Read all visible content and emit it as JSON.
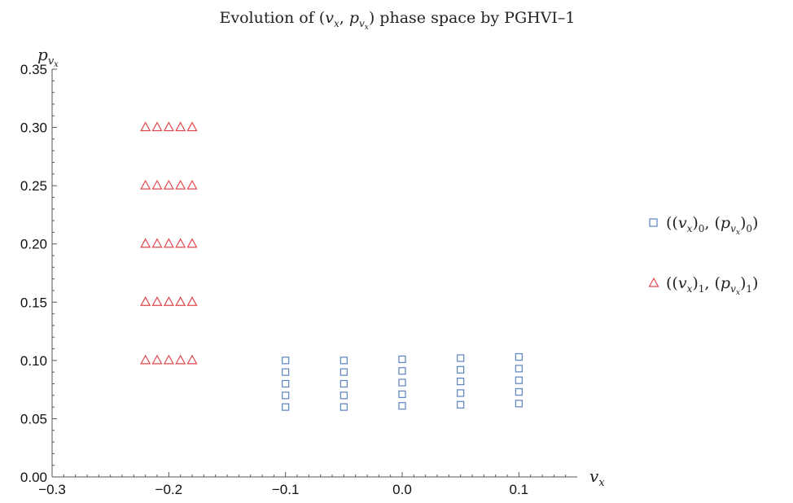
{
  "chart_data": {
    "type": "scatter",
    "title": "Evolution of (vₓ, p_vₓ) phase space by PGHVI–1",
    "title_parts": {
      "prefix": "Evolution of ",
      "open_paren": "(",
      "v": "v",
      "x_sub": "x",
      "comma": ", ",
      "p": "p",
      "p_sub_v": "v",
      "p_sub_x": "x",
      "close_paren": ")",
      "suffix": " phase space by PGHVI–1"
    },
    "xlabel": "vₓ",
    "ylabel": "p_vₓ",
    "xlim": [
      -0.3,
      0.15
    ],
    "ylim": [
      0.0,
      0.35
    ],
    "x_ticks": [
      {
        "value": -0.3,
        "label": "−0.3"
      },
      {
        "value": -0.2,
        "label": "−0.2"
      },
      {
        "value": -0.1,
        "label": "−0.1"
      },
      {
        "value": 0.0,
        "label": "0.0"
      },
      {
        "value": 0.1,
        "label": "0.1"
      }
    ],
    "y_ticks": [
      {
        "value": 0.0,
        "label": "0.00"
      },
      {
        "value": 0.05,
        "label": "0.05"
      },
      {
        "value": 0.1,
        "label": "0.10"
      },
      {
        "value": 0.15,
        "label": "0.15"
      },
      {
        "value": 0.2,
        "label": "0.20"
      },
      {
        "value": 0.25,
        "label": "0.25"
      },
      {
        "value": 0.3,
        "label": "0.30"
      },
      {
        "value": 0.35,
        "label": "0.35"
      }
    ],
    "grid": false,
    "legend_position": "right",
    "series": [
      {
        "name": "((vₓ)₀, (p_vₓ)₀)",
        "marker": "square",
        "color": "#5b83c0",
        "points": [
          [
            -0.1,
            0.06
          ],
          [
            -0.1,
            0.07
          ],
          [
            -0.1,
            0.08
          ],
          [
            -0.1,
            0.09
          ],
          [
            -0.1,
            0.1
          ],
          [
            -0.05,
            0.06
          ],
          [
            -0.05,
            0.07
          ],
          [
            -0.05,
            0.08
          ],
          [
            -0.05,
            0.09
          ],
          [
            -0.05,
            0.1
          ],
          [
            0.0,
            0.061
          ],
          [
            0.0,
            0.071
          ],
          [
            0.0,
            0.081
          ],
          [
            0.0,
            0.091
          ],
          [
            0.0,
            0.101
          ],
          [
            0.05,
            0.062
          ],
          [
            0.05,
            0.072
          ],
          [
            0.05,
            0.082
          ],
          [
            0.05,
            0.092
          ],
          [
            0.05,
            0.102
          ],
          [
            0.1,
            0.063
          ],
          [
            0.1,
            0.073
          ],
          [
            0.1,
            0.083
          ],
          [
            0.1,
            0.093
          ],
          [
            0.1,
            0.103
          ]
        ]
      },
      {
        "name": "((vₓ)₁, (p_vₓ)₁)",
        "marker": "triangle",
        "color": "#e0474c",
        "points": [
          [
            -0.22,
            0.1
          ],
          [
            -0.21,
            0.1
          ],
          [
            -0.2,
            0.1
          ],
          [
            -0.19,
            0.1
          ],
          [
            -0.18,
            0.1
          ],
          [
            -0.22,
            0.15
          ],
          [
            -0.21,
            0.15
          ],
          [
            -0.2,
            0.15
          ],
          [
            -0.19,
            0.15
          ],
          [
            -0.18,
            0.15
          ],
          [
            -0.22,
            0.2
          ],
          [
            -0.21,
            0.2
          ],
          [
            -0.2,
            0.2
          ],
          [
            -0.19,
            0.2
          ],
          [
            -0.18,
            0.2
          ],
          [
            -0.22,
            0.25
          ],
          [
            -0.21,
            0.25
          ],
          [
            -0.2,
            0.25
          ],
          [
            -0.19,
            0.25
          ],
          [
            -0.18,
            0.25
          ],
          [
            -0.22,
            0.3
          ],
          [
            -0.21,
            0.3
          ],
          [
            -0.2,
            0.3
          ],
          [
            -0.19,
            0.3
          ],
          [
            -0.18,
            0.3
          ]
        ]
      }
    ],
    "legend_parts": {
      "open": "((",
      "v": "v",
      "x_sub": "x",
      "mid": "), (",
      "p": "p",
      "p_sub_v": "v",
      "p_sub_x": "x",
      "close": "))",
      "comma_close": ")",
      "index0": "0",
      "index1": "1"
    }
  }
}
